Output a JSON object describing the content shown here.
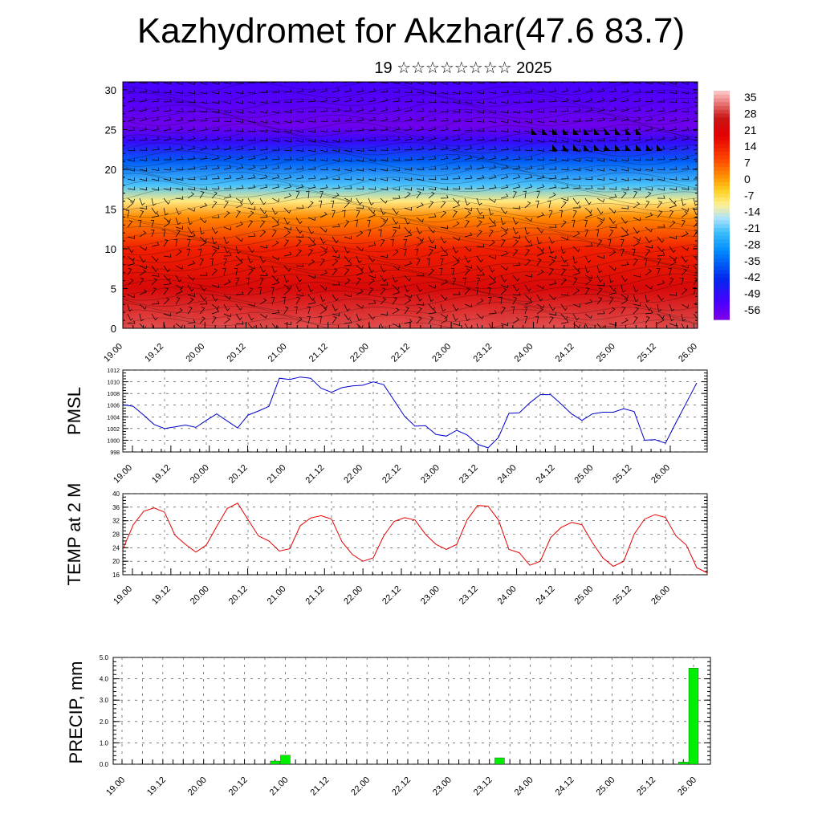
{
  "title": "Kazhydromet for Akzhar(47.6 83.7)",
  "subtitle": "19 ☆☆☆☆☆☆☆☆ 2025",
  "time_ticks": [
    "19.00",
    "19.12",
    "20.00",
    "20.12",
    "21.00",
    "21.12",
    "22.00",
    "22.12",
    "23.00",
    "23.12",
    "24.00",
    "24.12",
    "25.00",
    "25.12",
    "26.00"
  ],
  "chart_data": [
    {
      "type": "heatmap",
      "name": "temperature-wind-profile",
      "xlabel": "",
      "ylabel": "",
      "xlim": [
        0,
        168
      ],
      "ylim": [
        0,
        31
      ],
      "y_ticks": [
        0,
        5,
        10,
        15,
        20,
        25,
        30
      ],
      "colorbar": {
        "labels": [
          "35",
          "28",
          "21",
          "14",
          "7",
          "0",
          "-7",
          "-14",
          "-21",
          "-28",
          "-35",
          "-42",
          "-49",
          "-56"
        ],
        "range": [
          -60,
          38
        ]
      },
      "profile": [
        {
          "level": 0,
          "temp": 30
        },
        {
          "level": 5,
          "temp": 22
        },
        {
          "level": 10,
          "temp": 14
        },
        {
          "level": 14,
          "temp": 2
        },
        {
          "level": 16,
          "temp": -10
        },
        {
          "level": 18,
          "temp": -22
        },
        {
          "level": 21,
          "temp": -36
        },
        {
          "level": 23.5,
          "temp": -50
        },
        {
          "level": 25.5,
          "temp": -58
        },
        {
          "level": 28,
          "temp": -55
        },
        {
          "level": 31,
          "temp": -52
        }
      ],
      "warm_cores_hours": [
        6,
        30,
        54,
        78,
        102,
        126,
        150
      ],
      "wind_barbs": true
    },
    {
      "type": "line",
      "name": "pmsl",
      "ylabel": "PMSL",
      "xlabel": "",
      "ylim": [
        998,
        1012
      ],
      "y_ticks": [
        998,
        1000,
        1002,
        1004,
        1006,
        1008,
        1010,
        1012
      ],
      "color": "#0000cc",
      "x": [
        0,
        3,
        6,
        9,
        12,
        15,
        18,
        21,
        24,
        27,
        30,
        33,
        36,
        39,
        42,
        45,
        48,
        51,
        54,
        57,
        60,
        63,
        66,
        69,
        72,
        75,
        78,
        81,
        84,
        87,
        90,
        93,
        96,
        99,
        102,
        105,
        108,
        111,
        114,
        117,
        120,
        123,
        126,
        129,
        132,
        135,
        138,
        141,
        144,
        147,
        150,
        153,
        156,
        159,
        162,
        165,
        168
      ],
      "y": [
        1006.1,
        1005.8,
        1004.3,
        1002.7,
        1002.0,
        1002.3,
        1002.6,
        1002.2,
        1003.4,
        1004.5,
        1003.3,
        1002.1,
        1004.3,
        1005.0,
        1005.8,
        1010.6,
        1010.4,
        1010.8,
        1010.6,
        1008.9,
        1008.2,
        1009.0,
        1009.3,
        1009.4,
        1010.0,
        1009.5,
        1006.8,
        1004.1,
        1002.4,
        1002.5,
        1001.0,
        1000.7,
        1001.7,
        1000.9,
        999.3,
        998.7,
        1000.5,
        1004.6,
        1004.7,
        1006.4,
        1007.8,
        1007.8,
        1006.2,
        1004.5,
        1003.4,
        1004.5,
        1004.8,
        1004.8,
        1005.4,
        1004.9,
        1000.0,
        1000.1,
        999.5,
        1003.0,
        1006.4,
        1009.8,
        null
      ]
    },
    {
      "type": "line",
      "name": "temp-2m",
      "ylabel": "TEMP at 2 M",
      "xlabel": "",
      "ylim": [
        16,
        40
      ],
      "y_ticks": [
        16,
        20,
        24,
        28,
        32,
        36,
        40
      ],
      "color": "#e60000",
      "x": [
        0,
        3,
        6,
        9,
        12,
        15,
        18,
        21,
        24,
        27,
        30,
        33,
        36,
        39,
        42,
        45,
        48,
        51,
        54,
        57,
        60,
        63,
        66,
        69,
        72,
        75,
        78,
        81,
        84,
        87,
        90,
        93,
        96,
        99,
        102,
        105,
        108,
        111,
        114,
        117,
        120,
        123,
        126,
        129,
        132,
        135,
        138,
        141,
        144,
        147,
        150,
        153,
        156,
        159,
        162,
        165,
        168
      ],
      "y": [
        23.5,
        30.8,
        34.8,
        35.8,
        34.5,
        27.7,
        25.0,
        22.7,
        24.8,
        30.3,
        35.6,
        37.2,
        32.3,
        27.5,
        26.0,
        23.0,
        23.7,
        30.5,
        32.8,
        33.5,
        32.5,
        25.8,
        22.0,
        20.0,
        21.0,
        27.5,
        31.8,
        32.9,
        32.2,
        28.0,
        25.0,
        23.5,
        25.0,
        32.3,
        36.5,
        36.3,
        32.2,
        23.5,
        22.5,
        18.8,
        20.0,
        27.0,
        30.0,
        31.5,
        30.8,
        25.5,
        21.0,
        18.5,
        20.0,
        28.0,
        32.5,
        33.8,
        33.0,
        27.5,
        24.8,
        18.1,
        16.6
      ]
    },
    {
      "type": "bar",
      "name": "precip",
      "ylabel": "PRECIP, mm",
      "xlabel": "",
      "ylim": [
        0,
        5
      ],
      "y_ticks": [
        "0.0",
        "1.0",
        "2.0",
        "3.0",
        "4.0",
        "5.0"
      ],
      "color": "#00ee00",
      "bars": [
        {
          "hour": 45,
          "value": 0.15
        },
        {
          "hour": 48,
          "value": 0.42
        },
        {
          "hour": 111,
          "value": 0.3
        },
        {
          "hour": 165,
          "value": 0.1
        },
        {
          "hour": 168,
          "value": 4.5
        }
      ]
    }
  ]
}
